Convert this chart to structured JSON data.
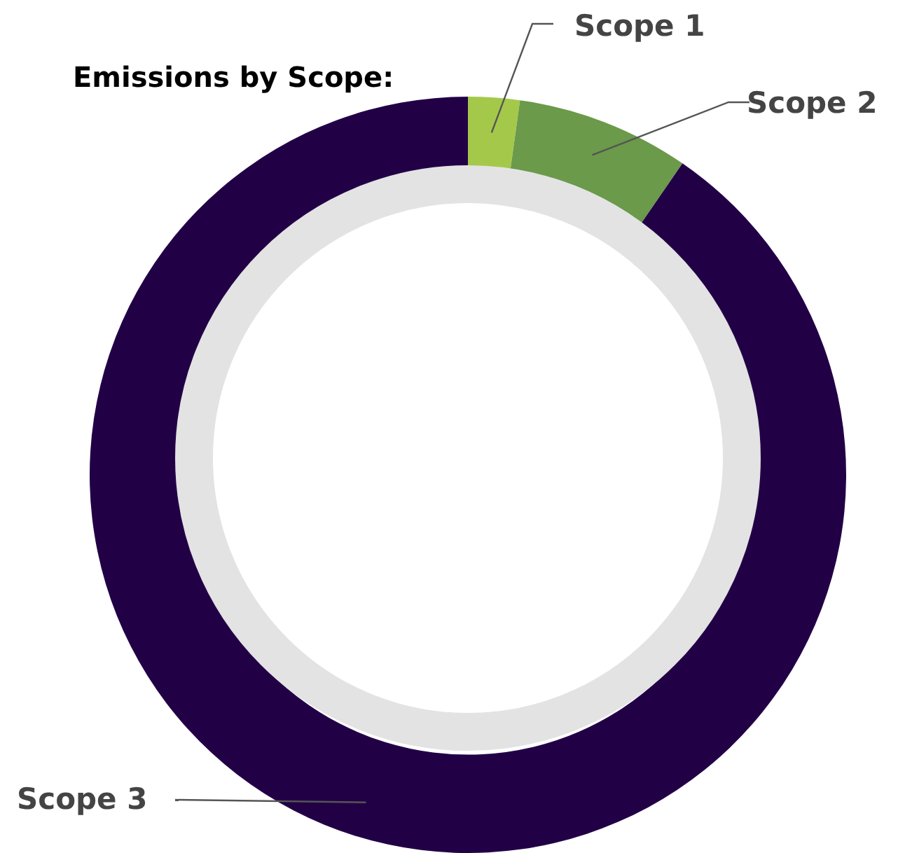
{
  "chart_data": {
    "type": "donut",
    "title": "Emissions by Scope:",
    "categories": [
      "Scope 1",
      "Scope 2",
      "Scope 3"
    ],
    "values": [
      2.2,
      7.4,
      90.4
    ],
    "colors": [
      "#a4c94a",
      "#6a9a4a",
      "#220046"
    ],
    "legend": false
  }
}
